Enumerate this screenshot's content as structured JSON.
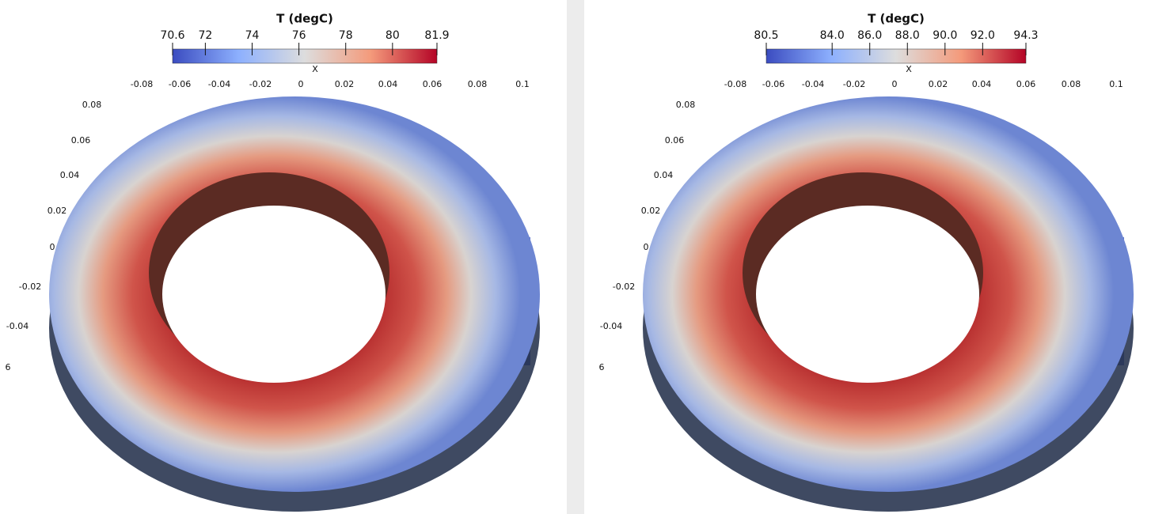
{
  "panels": [
    {
      "colorbar": {
        "title": "T (degC)",
        "range": [
          70.6,
          81.9
        ],
        "ticks": [
          70.6,
          72,
          74,
          76,
          78,
          80,
          81.9
        ]
      },
      "axis_title": "X",
      "x_labels": [
        "-0.08",
        "-0.06",
        "-0.04",
        "-0.02",
        "0",
        "0.02",
        "0.04",
        "0.06",
        "0.08",
        "0.1"
      ],
      "y_labels": [
        "0.08",
        "0.06",
        "0.04",
        "0.02",
        "0",
        "-0.02",
        "-0.04",
        "6"
      ]
    },
    {
      "colorbar": {
        "title": "T (degC)",
        "range": [
          80.5,
          94.3
        ],
        "ticks": [
          80.5,
          {
            "value": 84,
            "label": "84.0"
          },
          {
            "value": 86,
            "label": "86.0"
          },
          {
            "value": 88,
            "label": "88.0"
          },
          {
            "value": 90,
            "label": "90.0"
          },
          {
            "value": 92,
            "label": "92.0"
          },
          94.3
        ]
      },
      "axis_title": "X",
      "x_labels": [
        "-0.08",
        "-0.06",
        "-0.04",
        "-0.02",
        "0",
        "0.02",
        "0.04",
        "0.06",
        "0.08",
        "0.1"
      ],
      "y_labels": [
        "0.08",
        "0.06",
        "0.04",
        "0.02",
        "0",
        "-0.02",
        "-0.04",
        "6"
      ]
    }
  ]
}
